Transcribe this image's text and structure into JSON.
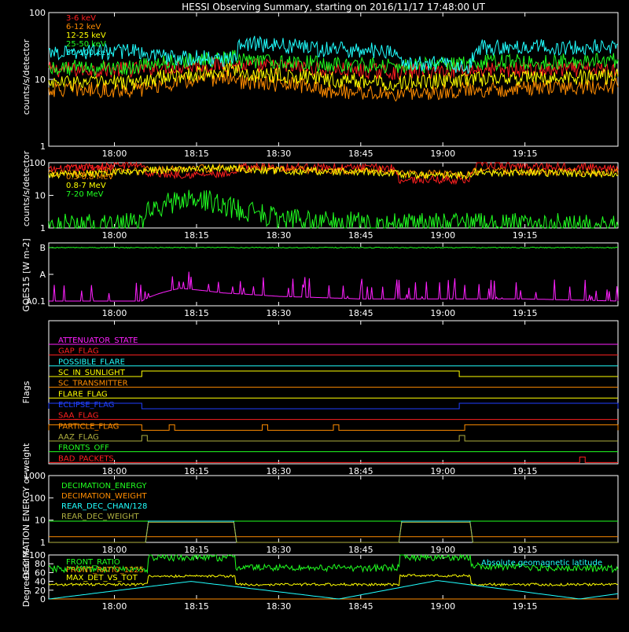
{
  "title": "HESSI Observing Summary, starting on 2016/11/17 17:48:00 UT",
  "colors": {
    "background": "#000000",
    "axes": "#ffffff",
    "red": "#ff2020",
    "orange": "#ff8c00",
    "yellow": "#ffff00",
    "green": "#20ff20",
    "cyan": "#20ffff",
    "magenta": "#ff20ff",
    "blue": "#2040ff",
    "olive": "#b0b040"
  },
  "chart_data": [
    {
      "type": "line",
      "panel": "count-rates-low",
      "ylabel": "counts/s/detector",
      "yscale": "log",
      "ylim": [
        1,
        100
      ],
      "ytick_labels": [
        "1",
        "10",
        "100"
      ],
      "xlim": [
        "17:48",
        "19:32"
      ],
      "xtick_labels": [
        "18:00",
        "18:15",
        "18:30",
        "18:45",
        "19:00",
        "19:15"
      ],
      "series": [
        {
          "name": "3-6 keV",
          "color": "red",
          "x": [
            "17:48",
            "18:05",
            "18:06",
            "18:22",
            "18:23",
            "18:36",
            "18:37",
            "18:51",
            "18:52",
            "19:05",
            "19:06",
            "19:32"
          ],
          "y": [
            14,
            14,
            15,
            17,
            16,
            15,
            14,
            13,
            13,
            14,
            14,
            14
          ]
        },
        {
          "name": "6-12 keV",
          "color": "orange",
          "x": [
            "17:48",
            "18:05",
            "18:06",
            "18:22",
            "18:23",
            "18:36",
            "18:37",
            "18:51",
            "18:52",
            "19:05",
            "19:06",
            "19:32"
          ],
          "y": [
            7,
            7,
            8,
            11,
            9,
            8,
            7,
            6,
            6,
            7,
            7,
            8
          ]
        },
        {
          "name": "12-25 keV",
          "color": "yellow",
          "x": [
            "17:48",
            "18:05",
            "18:06",
            "18:22",
            "18:23",
            "18:36",
            "18:37",
            "18:51",
            "18:52",
            "19:05",
            "19:06",
            "19:32"
          ],
          "y": [
            9,
            9,
            10,
            14,
            12,
            11,
            10,
            9,
            9,
            10,
            10,
            11
          ]
        },
        {
          "name": "25-50 keV",
          "color": "green",
          "x": [
            "17:48",
            "18:05",
            "18:06",
            "18:22",
            "18:23",
            "18:36",
            "18:37",
            "18:51",
            "18:52",
            "19:05",
            "19:06",
            "19:32"
          ],
          "y": [
            15,
            15,
            17,
            21,
            19,
            18,
            17,
            16,
            16,
            17,
            18,
            19
          ]
        },
        {
          "name": "50-100 keV",
          "color": "cyan",
          "x": [
            "17:48",
            "18:05",
            "18:06",
            "18:22",
            "18:23",
            "18:36",
            "18:37",
            "18:51",
            "18:52",
            "19:05",
            "19:06",
            "19:32"
          ],
          "y": [
            26,
            26,
            22,
            20,
            35,
            30,
            28,
            27,
            18,
            16,
            30,
            31
          ]
        }
      ]
    },
    {
      "type": "line",
      "panel": "count-rates-high",
      "ylabel": "counts/s/detector",
      "yscale": "log",
      "ylim": [
        1,
        100
      ],
      "ytick_labels": [
        "1",
        "10",
        "100"
      ],
      "xlim": [
        "17:48",
        "19:32"
      ],
      "xtick_labels": [
        "18:00",
        "18:15",
        "18:30",
        "18:45",
        "19:00",
        "19:15"
      ],
      "series": [
        {
          "name": "0.1-0.3 MeV",
          "color": "red",
          "x": [
            "17:48",
            "18:05",
            "18:06",
            "18:22",
            "18:23",
            "18:51",
            "18:52",
            "19:05",
            "19:06",
            "19:32"
          ],
          "y": [
            60,
            90,
            45,
            42,
            75,
            70,
            30,
            30,
            85,
            70
          ]
        },
        {
          "name": "0.3-0.8 MeV",
          "color": "orange",
          "x": [
            "17:48",
            "18:05",
            "18:06",
            "18:22",
            "18:23",
            "18:51",
            "18:52",
            "19:05",
            "19:06",
            "19:32"
          ],
          "y": [
            45,
            55,
            60,
            70,
            65,
            55,
            45,
            45,
            55,
            50
          ]
        },
        {
          "name": "0.8-7 MeV",
          "color": "yellow",
          "x": [
            "17:48",
            "18:05",
            "18:06",
            "18:22",
            "18:23",
            "18:51",
            "18:52",
            "19:05",
            "19:06",
            "19:32"
          ],
          "y": [
            42,
            52,
            58,
            68,
            60,
            50,
            42,
            42,
            50,
            45
          ]
        },
        {
          "name": "7-20 MeV",
          "color": "green",
          "x": [
            "17:48",
            "18:05",
            "18:06",
            "18:14",
            "18:22",
            "18:30",
            "18:40",
            "18:51",
            "19:00",
            "19:10",
            "19:20",
            "19:32"
          ],
          "y": [
            1.2,
            1.3,
            3,
            8,
            4,
            2,
            1.5,
            1.3,
            1.3,
            1.3,
            1.3,
            1.3
          ]
        }
      ]
    },
    {
      "type": "line",
      "panel": "goes-flux",
      "ylabel": "GOES15 [W m-2]",
      "yscale": "log",
      "ytick_labels": [
        "A0.1",
        "A",
        "B"
      ],
      "xlim": [
        "17:48",
        "19:32"
      ],
      "xtick_labels": [
        "18:00",
        "18:15",
        "18:30",
        "18:45",
        "19:00",
        "19:15"
      ],
      "series": [
        {
          "color": "green",
          "level": "B",
          "x": [
            "17:48",
            "19:32"
          ],
          "y": [
            1e-07,
            1e-07
          ]
        },
        {
          "color": "magenta",
          "level": "A0.1 spikes",
          "x": [
            "17:48",
            "18:05",
            "18:12",
            "18:20",
            "18:30",
            "18:45",
            "19:00",
            "19:15",
            "19:32"
          ],
          "y": [
            1e-09,
            1e-09,
            3e-09,
            2e-09,
            1.5e-09,
            1.2e-09,
            1.2e-09,
            1.2e-09,
            1e-09
          ]
        }
      ]
    },
    {
      "type": "line",
      "panel": "flags",
      "ylabel": "Flags",
      "xlim": [
        "17:48",
        "19:32"
      ],
      "xtick_labels": [
        "18:00",
        "18:15",
        "18:30",
        "18:45",
        "19:00",
        "19:15"
      ],
      "series": [
        {
          "name": "ATTENUATOR_STATE",
          "color": "magenta",
          "on": []
        },
        {
          "name": "GAP_FLAG",
          "color": "red",
          "on": []
        },
        {
          "name": "POSSIBLE_FLARE",
          "color": "cyan",
          "on": []
        },
        {
          "name": "SC_IN_SUNLIGHT",
          "color": "yellow",
          "on": [
            [
              "18:05",
              "19:03"
            ]
          ]
        },
        {
          "name": "SC_TRANSMITTER",
          "color": "orange",
          "on": []
        },
        {
          "name": "FLARE_FLAG",
          "color": "yellow",
          "on": []
        },
        {
          "name": "ECLIPSE_FLAG",
          "color": "blue",
          "on": [
            [
              "17:48",
              "18:05"
            ],
            [
              "19:03",
              "19:32"
            ]
          ]
        },
        {
          "name": "SAA_FLAG",
          "color": "red",
          "on": []
        },
        {
          "name": "PARTICLE_FLAG",
          "color": "orange",
          "on": [
            [
              "17:48",
              "18:05"
            ],
            [
              "18:10",
              "18:11"
            ],
            [
              "18:27",
              "18:28"
            ],
            [
              "18:40",
              "18:41"
            ],
            [
              "19:04",
              "19:32"
            ]
          ]
        },
        {
          "name": "AAZ_FLAG",
          "color": "olive",
          "on": [
            [
              "18:05",
              "18:06"
            ],
            [
              "19:03",
              "19:04"
            ]
          ]
        },
        {
          "name": "FRONTS_OFF",
          "color": "green",
          "on": []
        },
        {
          "name": "BAD_PACKETS",
          "color": "red",
          "on": [
            [
              "19:25",
              "19:26"
            ]
          ]
        }
      ]
    },
    {
      "type": "line",
      "panel": "decimation",
      "ylabel": "DECIMATION ENERGY or weight",
      "yscale": "log",
      "ylim": [
        1,
        1000
      ],
      "ytick_labels": [
        "1",
        "10",
        "100",
        "1000"
      ],
      "xlim": [
        "17:48",
        "19:32"
      ],
      "xtick_labels": [
        "18:00",
        "18:15",
        "18:30",
        "18:45",
        "19:00",
        "19:15"
      ],
      "series": [
        {
          "name": "DECIMATION_ENERGY",
          "color": "green",
          "x": [
            "17:48",
            "19:32"
          ],
          "y": [
            9,
            9
          ]
        },
        {
          "name": "DECIMATION_WEIGHT",
          "color": "orange",
          "x": [
            "17:48",
            "19:32"
          ],
          "y": [
            1.8,
            1.8
          ]
        },
        {
          "name": "REAR_DEC_CHAN/128",
          "color": "cyan",
          "x": [
            "17:48",
            "18:06",
            "18:06",
            "18:22",
            "18:22",
            "18:52",
            "18:52",
            "19:05",
            "19:05",
            "19:32"
          ],
          "y": [
            1,
            1,
            9,
            9,
            1,
            1,
            9,
            9,
            1,
            1
          ]
        },
        {
          "name": "REAR_DEC_WEIGHT",
          "color": "olive",
          "x": [
            "17:48",
            "18:06",
            "18:06",
            "18:22",
            "18:22",
            "18:52",
            "18:52",
            "19:05",
            "19:05",
            "19:32"
          ],
          "y": [
            1,
            1,
            8,
            8,
            1,
            1,
            8,
            8,
            1,
            1
          ]
        }
      ]
    },
    {
      "type": "line",
      "panel": "ratios",
      "ylabel": "Degrees or %",
      "ylim": [
        0,
        100
      ],
      "ytick_labels": [
        "0",
        "20",
        "40",
        "60",
        "80",
        "100"
      ],
      "xlim": [
        "17:48",
        "19:32"
      ],
      "xtick_labels": [
        "18:00",
        "18:15",
        "18:30",
        "18:45",
        "19:00",
        "19:15"
      ],
      "annotation": "Absolute geomagnetic latitude",
      "series": [
        {
          "name": "FRONT_RATIO",
          "color": "green",
          "x": [
            "17:48",
            "18:06",
            "18:06",
            "18:22",
            "18:22",
            "18:52",
            "18:52",
            "19:05",
            "19:05",
            "19:32"
          ],
          "y": [
            68,
            68,
            94,
            94,
            72,
            70,
            95,
            95,
            75,
            68
          ]
        },
        {
          "name": "FRONT_RATIO_1225",
          "color": "orange",
          "x": [
            "17:48",
            "19:32"
          ],
          "y": [
            0,
            0
          ]
        },
        {
          "name": "MAX_DET_VS_TOT",
          "color": "yellow",
          "x": [
            "17:48",
            "18:06",
            "18:06",
            "18:22",
            "18:22",
            "18:52",
            "18:52",
            "19:05",
            "19:05",
            "19:32"
          ],
          "y": [
            33,
            33,
            52,
            52,
            33,
            33,
            53,
            53,
            33,
            33
          ]
        },
        {
          "name": "Absolute geomagnetic latitude",
          "color": "cyan",
          "x": [
            "17:48",
            "18:14",
            "18:41",
            "18:59",
            "19:25",
            "19:32"
          ],
          "y": [
            0,
            40,
            0,
            42,
            0,
            12
          ]
        }
      ]
    }
  ]
}
